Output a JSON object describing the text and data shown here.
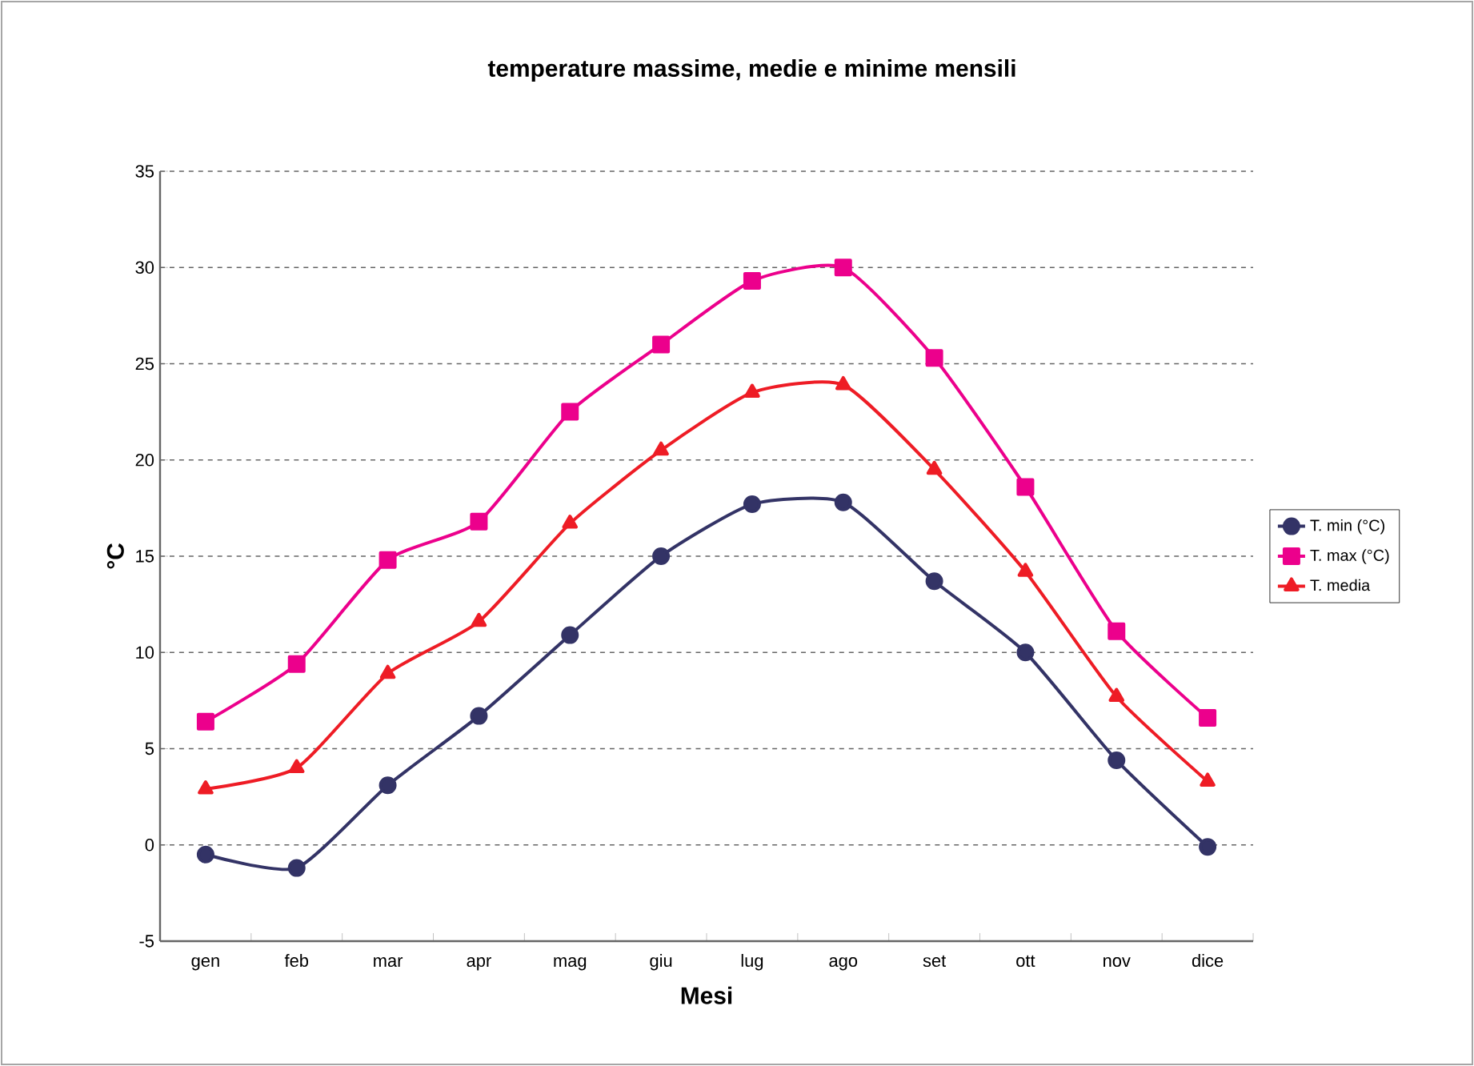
{
  "chart_data": {
    "type": "line",
    "title": "temperature massime, medie e minime mensili",
    "xlabel": "Mesi",
    "ylabel": "°C",
    "categories": [
      "gen",
      "feb",
      "mar",
      "apr",
      "mag",
      "giu",
      "lug",
      "ago",
      "set",
      "ott",
      "nov",
      "dice"
    ],
    "series": [
      {
        "name": "T. min  (°C)",
        "color": "#333366",
        "marker": "circle",
        "values": [
          -0.5,
          -1.2,
          3.1,
          6.7,
          10.9,
          15.0,
          17.7,
          17.8,
          13.7,
          10.0,
          4.4,
          -0.1
        ]
      },
      {
        "name": "T. max  (°C)",
        "color": "#ec008c",
        "marker": "square",
        "values": [
          6.4,
          9.4,
          14.8,
          16.8,
          22.5,
          26.0,
          29.3,
          30.0,
          25.3,
          18.6,
          11.1,
          6.6
        ]
      },
      {
        "name": "T. media",
        "color": "#ee1c25",
        "marker": "triangle",
        "values": [
          2.9,
          4.0,
          8.9,
          11.6,
          16.7,
          20.5,
          23.5,
          23.9,
          19.5,
          14.2,
          7.7,
          3.3
        ]
      }
    ],
    "ylim": [
      -5,
      35
    ],
    "yticks": [
      -5,
      0,
      5,
      10,
      15,
      20,
      25,
      30,
      35
    ],
    "grid": "y",
    "legend": "right",
    "line_style": "solid"
  }
}
